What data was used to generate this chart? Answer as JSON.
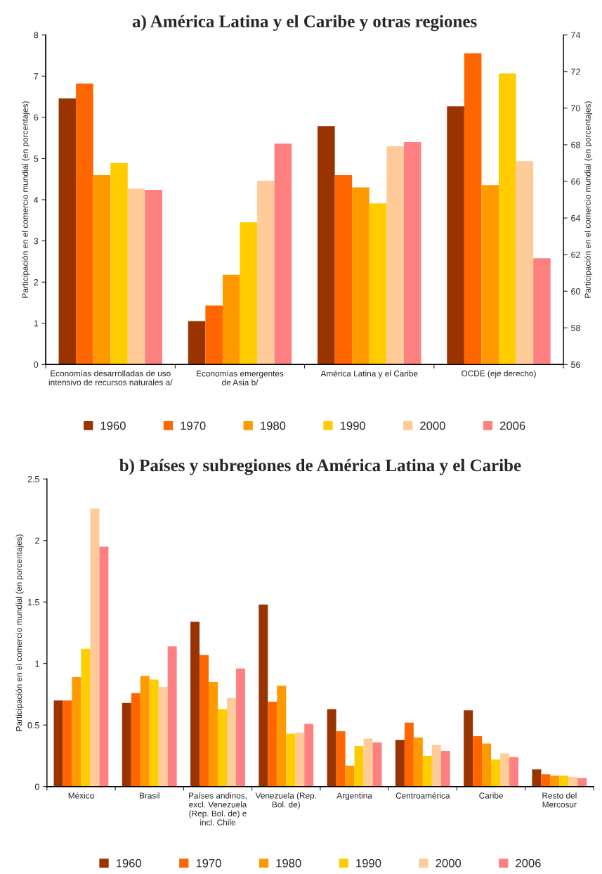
{
  "chart_data": [
    {
      "type": "bar",
      "title": "a) América Latina y el Caribe y otras regiones",
      "ylabel": "Participación en el comercio mundial (en porcentajes)",
      "y2label": "Participación en el comercio mundial (en porcentajes)",
      "categories": [
        "Economías desarrolladas de uso\nintensivo de recursos naturales a/",
        "Economías emergentes\nde Asia b/",
        "América Latina y el Caribe",
        "OCDE (eje derecho)"
      ],
      "series": [
        {
          "name": "1960",
          "color": "#993300",
          "values": [
            6.46,
            1.05,
            5.79,
            null
          ]
        },
        {
          "name": "1970",
          "color": "#ff6600",
          "values": [
            6.82,
            1.43,
            4.6,
            null
          ]
        },
        {
          "name": "1980",
          "color": "#ff9900",
          "values": [
            4.6,
            2.18,
            4.3,
            null
          ]
        },
        {
          "name": "1990",
          "color": "#ffcc00",
          "values": [
            4.89,
            3.45,
            3.91,
            null
          ]
        },
        {
          "name": "2000",
          "color": "#ffcc99",
          "values": [
            4.27,
            4.46,
            5.3,
            null
          ]
        },
        {
          "name": "2006",
          "color": "#ff8080",
          "values": [
            4.24,
            5.36,
            5.4,
            null
          ]
        },
        {
          "axis": "y2",
          "color": "#993300",
          "values": [
            null,
            null,
            null,
            70.1
          ]
        },
        {
          "axis": "y2",
          "color": "#ff6600",
          "values": [
            null,
            null,
            null,
            73.0
          ]
        },
        {
          "axis": "y2",
          "color": "#ff9900",
          "values": [
            null,
            null,
            null,
            65.8
          ]
        },
        {
          "axis": "y2",
          "color": "#ffcc00",
          "values": [
            null,
            null,
            null,
            71.9
          ]
        },
        {
          "axis": "y2",
          "color": "#ffcc99",
          "values": [
            null,
            null,
            null,
            67.1
          ]
        },
        {
          "axis": "y2",
          "color": "#ff8080",
          "values": [
            null,
            null,
            null,
            61.8
          ]
        }
      ],
      "ylim": [
        0,
        8
      ],
      "yticks": [
        0,
        1,
        2,
        3,
        4,
        5,
        6,
        7,
        8
      ],
      "y2lim": [
        56,
        74
      ],
      "y2ticks": [
        56,
        58,
        60,
        62,
        64,
        66,
        68,
        70,
        72,
        74
      ],
      "legend": "bottom",
      "grid": false
    },
    {
      "type": "bar",
      "title": "b) Países y subregiones de América Latina y el Caribe",
      "ylabel": "Participación en el comercio mundial (en porcentajes)",
      "categories": [
        "México",
        "Brasil",
        "Países andinos,\nexcl. Venezuela\n(Rep. Bol. de) e\nincl. Chile",
        "Venezuela (Rep.\nBol. de)",
        "Argentina",
        "Centroamérica",
        "Caribe",
        "Resto del\nMercosur"
      ],
      "series": [
        {
          "name": "1960",
          "color": "#993300",
          "values": [
            0.7,
            0.68,
            1.34,
            1.48,
            0.63,
            0.38,
            0.62,
            0.14
          ]
        },
        {
          "name": "1970",
          "color": "#ff6600",
          "values": [
            0.7,
            0.76,
            1.07,
            0.69,
            0.45,
            0.52,
            0.41,
            0.1
          ]
        },
        {
          "name": "1980",
          "color": "#ff9900",
          "values": [
            0.89,
            0.9,
            0.85,
            0.82,
            0.17,
            0.4,
            0.35,
            0.09
          ]
        },
        {
          "name": "1990",
          "color": "#ffcc00",
          "values": [
            1.12,
            0.87,
            0.63,
            0.43,
            0.33,
            0.25,
            0.22,
            0.09
          ]
        },
        {
          "name": "2000",
          "color": "#ffcc99",
          "values": [
            2.26,
            0.81,
            0.72,
            0.44,
            0.39,
            0.34,
            0.27,
            0.08
          ]
        },
        {
          "name": "2006",
          "color": "#ff8080",
          "values": [
            1.95,
            1.14,
            0.96,
            0.51,
            0.36,
            0.29,
            0.24,
            0.07
          ]
        }
      ],
      "ylim": [
        0,
        2.5
      ],
      "yticks": [
        0,
        0.5,
        1,
        1.5,
        2,
        2.5
      ],
      "legend": "bottom",
      "grid": false
    }
  ]
}
